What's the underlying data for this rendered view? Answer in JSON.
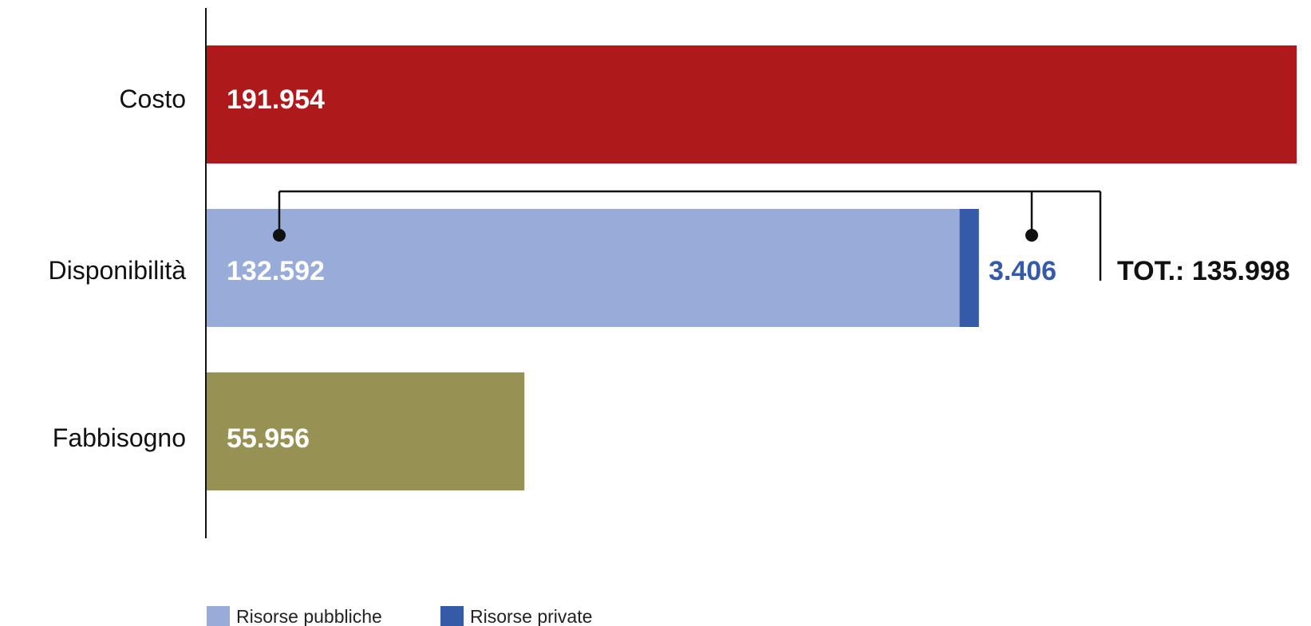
{
  "chart_data": {
    "type": "bar",
    "orientation": "horizontal",
    "stacked": true,
    "categories": [
      "Costo",
      "Disponibilità",
      "Fabbisogno"
    ],
    "series": [
      {
        "name": "",
        "values": [
          191954,
          null,
          null
        ],
        "color": "#ae1a1b"
      },
      {
        "name": "Risorse pubbliche",
        "values": [
          null,
          132592,
          null
        ],
        "color": "#99acd9"
      },
      {
        "name": "Risorse private",
        "values": [
          null,
          3406,
          null
        ],
        "color": "#355aa8"
      },
      {
        "name": "",
        "values": [
          null,
          null,
          55956
        ],
        "color": "#989154"
      }
    ],
    "value_labels": {
      "costo": "191.954",
      "pubbliche": "132.592",
      "private": "3.406",
      "fabbisogno": "55.956"
    },
    "total_label": "TOT.: 135.998",
    "xlim": [
      0,
      191954
    ],
    "grid": false,
    "legend_position": "bottom-left",
    "legend": [
      {
        "label": "Risorse pubbliche",
        "color": "#99acd9"
      },
      {
        "label": "Risorse private",
        "color": "#355aa8"
      }
    ],
    "private_label_color": "#355aa8"
  }
}
